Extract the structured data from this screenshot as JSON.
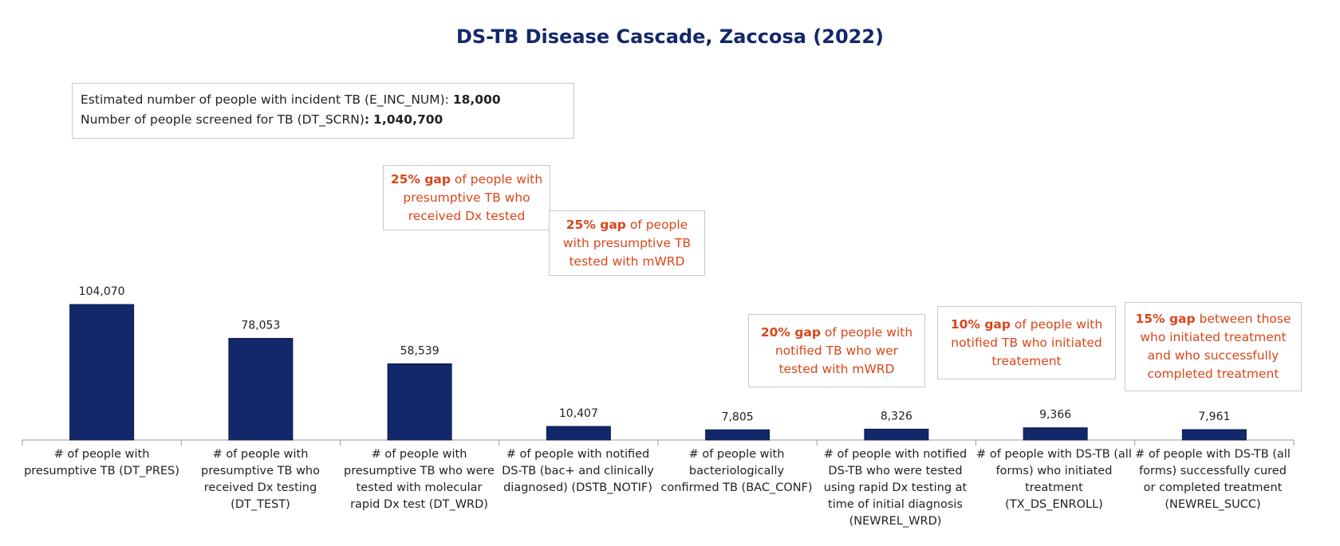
{
  "title": "DS-TB Disease Cascade, Zaccosa (2022)",
  "info": {
    "line1_label": "Estimated number of people with incident TB (E_INC_NUM):",
    "line1_value": "18,000",
    "line2_label": "Number of people screened for TB (DT_SCRN)",
    "line2_sep": ":",
    "line2_value": "1,040,700"
  },
  "gaps": [
    {
      "pct": "25% gap",
      "text": " of people with presumptive TB who received Dx tested"
    },
    {
      "pct": "25% gap",
      "text": " of people with presumptive TB tested with mWRD"
    },
    {
      "pct": "20% gap",
      "text": " of people with notified TB who wer tested with mWRD"
    },
    {
      "pct": "10% gap",
      "text": " of people with notified TB who initiated treatement"
    },
    {
      "pct": "15% gap",
      "text": " between those who initiated treatment and who successfully completed treatment"
    }
  ],
  "colors": {
    "bar": "#13286b",
    "gap_text": "#d9461a",
    "title": "#13286b"
  },
  "chart_data": {
    "type": "bar",
    "title": "DS-TB Disease Cascade, Zaccosa (2022)",
    "categories": [
      "# of people with presumptive TB (DT_PRES)",
      "# of people with presumptive TB who received Dx testing (DT_TEST)",
      "# of people with presumptive TB who were tested with molecular rapid Dx test (DT_WRD)",
      "# of people with notified DS-TB (bac+ and clinically diagnosed) (DSTB_NOTIF)",
      "# of people with bacteriologically confirmed TB (BAC_CONF)",
      "# of people with notified DS-TB who were tested using rapid Dx testing at time of initial diagnosis (NEWREL_WRD)",
      "# of people with DS-TB (all forms) who initiated treatment (TX_DS_ENROLL)",
      "# of people with DS-TB (all forms) successfully cured or completed treatment (NEWREL_SUCC)"
    ],
    "values": [
      104070,
      78053,
      58539,
      10407,
      7805,
      8326,
      9366,
      7961
    ],
    "data_labels": [
      "104,070",
      "78,053",
      "58,539",
      "10,407",
      "7,805",
      "8,326",
      "9,366",
      "7,961"
    ],
    "ylim": [
      0,
      125000
    ],
    "grid": false,
    "legend": "none"
  }
}
